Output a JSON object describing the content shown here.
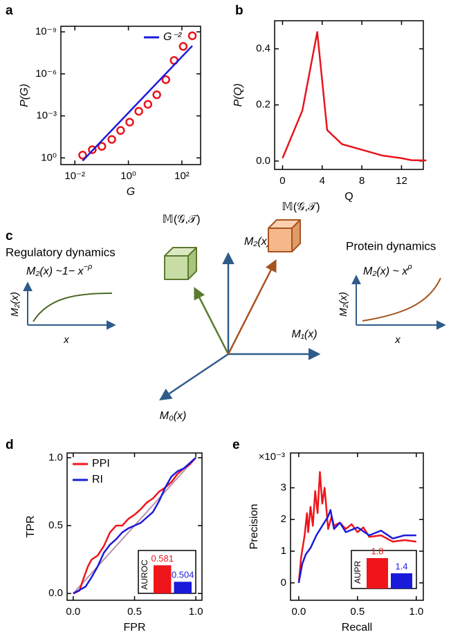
{
  "panel_labels": [
    "a",
    "b",
    "c",
    "d",
    "e"
  ],
  "chart_data": [
    {
      "type": "scatter",
      "xlabel": "G",
      "ylabel": "P(G)",
      "xlog": true,
      "ylog": true,
      "xlim": [
        0.003,
        500
      ],
      "ylim": [
        3,
        4e-10
      ],
      "xticks": [
        {
          "value": 0.01,
          "label": "10⁻²"
        },
        {
          "value": 1,
          "label": "10⁰"
        },
        {
          "value": 100,
          "label": "10²"
        }
      ],
      "yticks": [
        {
          "value": 1,
          "label": "10⁰"
        },
        {
          "value": 0.001,
          "label": "10⁻³"
        },
        {
          "value": 1e-06,
          "label": "10⁻⁶"
        },
        {
          "value": 1e-09,
          "label": "10⁻⁹"
        }
      ],
      "legend": "upper right",
      "series": [
        {
          "color": "#e8141b",
          "marker": "circle",
          "x": [
            0.0195,
            0.0447,
            0.102,
            0.24,
            0.513,
            1.12,
            2.45,
            5.37,
            11.5,
            25.1,
            51.3,
            112,
            245
          ],
          "values": [
            0.63,
            0.26,
            0.15,
            0.048,
            0.011,
            0.0028,
            0.00047,
            0.00015,
            3.1e-05,
            2.6e-06,
            1.1e-07,
            1.1e-08,
            1.9e-09
          ]
        },
        {
          "name": "G⁻²",
          "color": "#1a1adb",
          "x": [
            0.0195,
            245
          ],
          "values": [
            1.6,
            1e-08
          ]
        }
      ]
    },
    {
      "type": "line",
      "xlabel": "Q",
      "ylabel": "P(Q)",
      "color": "#e8141b",
      "xlim": [
        -0.8,
        14.2
      ],
      "ylim": [
        -0.03,
        0.5
      ],
      "xticks": [
        0,
        4,
        8,
        12
      ],
      "yticks": [
        {
          "value": 0,
          "label": "0.0"
        },
        0.2,
        0.4
      ],
      "x": [
        0,
        2,
        3.5,
        4.5,
        6,
        8,
        10,
        12,
        13,
        14.5
      ],
      "values": [
        0.01,
        0.18,
        0.46,
        0.11,
        0.06,
        0.04,
        0.02,
        0.01,
        0.003,
        0.002
      ]
    },
    {
      "type": "line",
      "xlabel": "FPR",
      "ylabel": "TPR",
      "xlim": [
        -0.05,
        1.05
      ],
      "ylim": [
        -0.05,
        1.035
      ],
      "xticks": [
        {
          "value": 0,
          "label": "0.0"
        },
        0.5,
        {
          "value": 1,
          "label": "1.0"
        }
      ],
      "yticks": [
        {
          "value": 0,
          "label": "0.0"
        },
        0.5,
        {
          "value": 1,
          "label": "1.0"
        }
      ],
      "diagonal": true,
      "legend": "upper left",
      "series": [
        {
          "name": "PPI",
          "color": "#f0141b",
          "x": [
            0,
            0.05,
            0.08,
            0.12,
            0.15,
            0.2,
            0.25,
            0.3,
            0.35,
            0.4,
            0.45,
            0.5,
            0.55,
            0.6,
            0.65,
            0.7,
            0.75,
            0.8,
            0.85,
            0.9,
            0.95,
            1
          ],
          "values": [
            0,
            0.02,
            0.1,
            0.2,
            0.25,
            0.28,
            0.35,
            0.45,
            0.5,
            0.5,
            0.55,
            0.58,
            0.62,
            0.67,
            0.7,
            0.75,
            0.78,
            0.82,
            0.88,
            0.92,
            0.95,
            1
          ]
        },
        {
          "name": "RI",
          "color": "#1a1adb",
          "x": [
            0,
            0.1,
            0.15,
            0.2,
            0.25,
            0.3,
            0.35,
            0.4,
            0.45,
            0.5,
            0.55,
            0.6,
            0.65,
            0.7,
            0.75,
            0.8,
            0.85,
            0.9,
            0.95,
            1
          ],
          "values": [
            0,
            0.05,
            0.12,
            0.2,
            0.3,
            0.36,
            0.4,
            0.45,
            0.48,
            0.5,
            0.52,
            0.56,
            0.6,
            0.68,
            0.78,
            0.86,
            0.9,
            0.92,
            0.96,
            1
          ]
        }
      ],
      "inset": {
        "type": "bar",
        "ylabel": "AUROC",
        "ylim": [
          0.45,
          0.65
        ],
        "values": [
          0.581,
          0.504
        ],
        "colors": [
          "#f0141b",
          "#1a1adb"
        ]
      }
    },
    {
      "type": "line",
      "xlabel": "Recall",
      "ylabel": "Precision",
      "y_multiplier": "×10⁻³",
      "xlim": [
        -0.07,
        1.06
      ],
      "ylim": [
        -0.55,
        4.1
      ],
      "xticks": [
        {
          "value": 0,
          "label": "0.0"
        },
        0.5,
        {
          "value": 1,
          "label": "1.0"
        }
      ],
      "yticks": [
        0,
        1,
        2,
        3
      ],
      "series": [
        {
          "color": "#f0141b",
          "x": [
            0,
            0.02,
            0.05,
            0.07,
            0.08,
            0.1,
            0.12,
            0.14,
            0.16,
            0.18,
            0.2,
            0.22,
            0.25,
            0.28,
            0.3,
            0.35,
            0.4,
            0.45,
            0.5,
            0.55,
            0.6,
            0.7,
            0.8,
            0.9,
            1.0
          ],
          "values": [
            0,
            0.8,
            1.5,
            2.2,
            1.6,
            2.4,
            1.8,
            2.9,
            2.2,
            3.5,
            2.5,
            3.0,
            1.7,
            2.1,
            1.8,
            1.9,
            1.7,
            1.85,
            1.6,
            1.75,
            1.45,
            1.5,
            1.3,
            1.35,
            1.3
          ]
        },
        {
          "color": "#1a1adb",
          "x": [
            0,
            0.03,
            0.06,
            0.1,
            0.15,
            0.2,
            0.25,
            0.27,
            0.3,
            0.35,
            0.4,
            0.5,
            0.6,
            0.7,
            0.8,
            0.9,
            1.0
          ],
          "values": [
            0,
            0.6,
            0.9,
            1.1,
            1.5,
            1.8,
            2.1,
            2.3,
            1.7,
            1.9,
            1.6,
            1.75,
            1.5,
            1.65,
            1.4,
            1.5,
            1.5
          ]
        }
      ],
      "inset": {
        "type": "bar",
        "ylabel": "AUPR",
        "ylim": [
          1,
          2
        ],
        "values": [
          1.8,
          1.4
        ],
        "colors": [
          "#f0141b",
          "#1a1adb"
        ]
      }
    }
  ],
  "diagram": {
    "left_title": "Regulatory dynamics",
    "left_formula": {
      "text": "M₂(x) ~1− x",
      "sup": "−ρ"
    },
    "right_title": "Protein dynamics",
    "right_formula": {
      "text": "M₂(x) ~ x",
      "sup": "ρ"
    },
    "axis_up": "M₂(x)",
    "axis_right": "M₁(x)",
    "axis_down": "M₀(x)",
    "cube_left": "𝕄(𝒢,𝒯)",
    "cube_right": "𝕄(𝒢,𝒯)",
    "left_plot": {
      "ylabel": "M₂(x)",
      "xlabel": "x"
    },
    "right_plot": {
      "ylabel": "M₂(x)",
      "xlabel": "x"
    }
  }
}
